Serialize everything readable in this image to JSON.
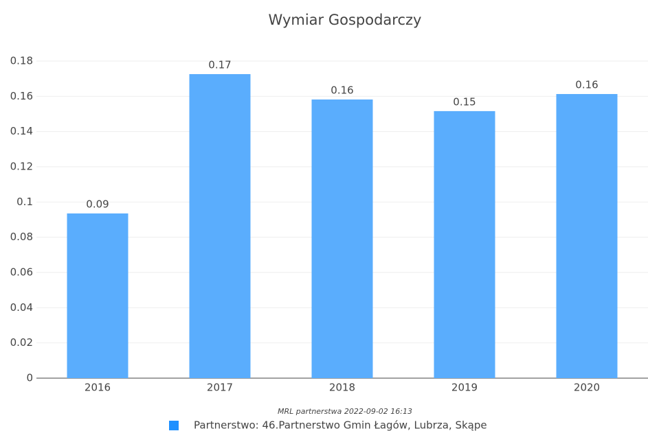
{
  "chart_data": {
    "type": "bar",
    "title": "Wymiar Gospodarczy",
    "categories": [
      "2016",
      "2017",
      "2018",
      "2019",
      "2020"
    ],
    "series": [
      {
        "name": "Partnerstwo: 46.Partnerstwo Gmin Łagów, Lubrza, Skąpe",
        "color": "#5aadfd",
        "values": [
          0.0935,
          0.1726,
          0.1582,
          0.1516,
          0.1613
        ],
        "value_labels": [
          "0.09",
          "0.17",
          "0.16",
          "0.15",
          "0.16"
        ]
      }
    ],
    "ylim": [
      0,
      0.18
    ],
    "yticks": [
      0,
      0.02,
      0.04,
      0.06,
      0.08,
      0.1,
      0.12,
      0.14,
      0.16,
      0.18
    ],
    "grid": true,
    "legend": "bottom",
    "annotation": "MRL partnerstwa 2022-09-02 16:13"
  }
}
